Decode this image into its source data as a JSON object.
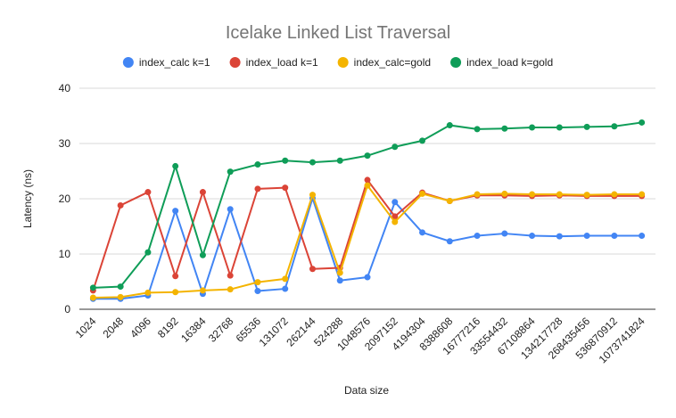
{
  "chart_data": {
    "type": "line",
    "title": "Icelake Linked List Traversal",
    "xlabel": "Data size",
    "ylabel": "Latency (ns)",
    "ylim": [
      0,
      40
    ],
    "yticks": [
      0,
      10,
      20,
      30,
      40
    ],
    "grid": true,
    "legend_position": "top",
    "categories": [
      "1024",
      "2048",
      "4096",
      "8192",
      "16384",
      "32768",
      "65536",
      "131072",
      "262144",
      "524288",
      "1048576",
      "2097152",
      "4194304",
      "8388608",
      "16777216",
      "33554432",
      "67108864",
      "134217728",
      "268435456",
      "536870912",
      "1073741824"
    ],
    "series": [
      {
        "name": "index_calc k=1",
        "color": "#4285f4",
        "values": [
          1.9,
          1.9,
          2.5,
          17.8,
          2.8,
          18.1,
          3.3,
          3.7,
          20.1,
          5.2,
          5.8,
          19.4,
          13.9,
          12.3,
          13.3,
          13.7,
          13.3,
          13.2,
          13.3,
          13.3,
          13.3
        ]
      },
      {
        "name": "index_load k=1",
        "color": "#db4437",
        "values": [
          3.4,
          18.8,
          21.2,
          6.0,
          21.2,
          6.1,
          21.8,
          22.0,
          7.3,
          7.5,
          23.4,
          16.8,
          21.1,
          19.6,
          20.6,
          20.6,
          20.5,
          20.6,
          20.5,
          20.5,
          20.5
        ]
      },
      {
        "name": "index_calc=gold",
        "color": "#f4b400",
        "values": [
          2.1,
          2.2,
          3.0,
          3.1,
          3.4,
          3.6,
          4.9,
          5.5,
          20.7,
          6.6,
          22.4,
          15.8,
          20.9,
          19.6,
          20.8,
          20.9,
          20.8,
          20.8,
          20.7,
          20.8,
          20.8
        ]
      },
      {
        "name": "index_load k=gold",
        "color": "#0f9d58",
        "values": [
          3.9,
          4.1,
          10.3,
          25.9,
          9.8,
          24.9,
          26.2,
          26.9,
          26.6,
          26.9,
          27.8,
          29.4,
          30.5,
          33.3,
          32.6,
          32.7,
          32.9,
          32.9,
          33.0,
          33.1,
          33.8
        ]
      }
    ]
  }
}
